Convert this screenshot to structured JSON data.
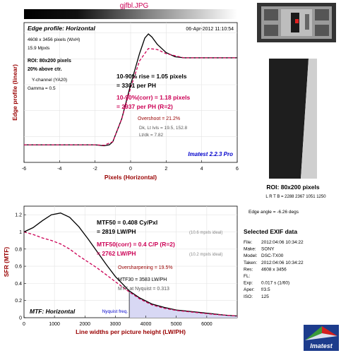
{
  "filename": "gjfbl.JPG",
  "chart_data": [
    {
      "type": "line",
      "title": "Edge profile: Horizontal",
      "timestamp": "06-Apr-2012 11:10:54",
      "xlabel": "Pixels (Horizontal)",
      "ylabel": "Edge profile (linear)",
      "xlim": [
        -6,
        6
      ],
      "ylim": [
        0,
        1.35
      ],
      "x_ticks": [
        "-6",
        "-4",
        "-2",
        "0",
        "2",
        "4",
        "6"
      ],
      "info": [
        "4608 x 3456 pixels (WxH)",
        "15.9 Mpxls"
      ],
      "roi_info": [
        "ROI: 80x200 pixels",
        "20% above ctr."
      ],
      "channel_info": [
        "Y-channel  (YA20)",
        "Gamma = 0.5"
      ],
      "rise_lines": [
        "10-90% rise = 1.05 pixels",
        "= 3301 per PH"
      ],
      "rise_corr_lines": [
        "10-90%(corr) = 1.18 pixels",
        "= 2937 per PH  (R=2)"
      ],
      "overshoot": "Overshoot = 21.2%",
      "dk_lines": [
        "Dk, Lt lvls = 19.5, 152.8",
        "Lt/dk = 7.82"
      ],
      "brand": "Imatest 2.2.3 Pro",
      "series": [
        {
          "style": "solid",
          "color": "#000000",
          "x": [
            -6,
            -5,
            -4,
            -3,
            -2,
            -1.5,
            -1.2,
            -1,
            -0.5,
            0,
            0.5,
            0.8,
            1,
            1.2,
            1.5,
            2,
            2.5,
            3,
            4,
            5,
            6
          ],
          "y": [
            0.17,
            0.17,
            0.17,
            0.17,
            0.17,
            0.16,
            0.17,
            0.2,
            0.42,
            0.75,
            1.05,
            1.2,
            1.24,
            1.21,
            1.14,
            1.06,
            1.02,
            1.01,
            1.01,
            1.01,
            1.01
          ]
        },
        {
          "style": "dashed",
          "color": "#cc0055",
          "x": [
            -6,
            -2,
            -1.5,
            -1,
            -0.5,
            0,
            0.5,
            1,
            1.5,
            2,
            3,
            4,
            5,
            6
          ],
          "y": [
            0.17,
            0.17,
            0.165,
            0.2,
            0.42,
            0.72,
            0.98,
            1.1,
            1.09,
            1.05,
            1.01,
            1.01,
            1.01,
            1.01
          ]
        }
      ]
    },
    {
      "type": "line",
      "title": "MTF: Horizontal",
      "xlabel": "Line widths per picture height (LW/PH)",
      "ylabel": "SFR (MTF)",
      "xlim": [
        0,
        7000
      ],
      "ylim": [
        0,
        1.3
      ],
      "x_ticks": [
        "0",
        "1000",
        "2000",
        "3000",
        "4000",
        "5000",
        "6000"
      ],
      "y_ticks": [
        "0",
        "0.2",
        "0.4",
        "0.6",
        "0.8",
        "1",
        "1.2"
      ],
      "nyquist_x": 3456,
      "nyquist_label": "Nyquist freq.",
      "mtf50_lines": [
        "MTF50 = 0.408 Cy/Pxl",
        "= 2819 LW/PH"
      ],
      "mtf50_ideal": "(10.6 mpxls ideal)",
      "mtf50_corr_lines": [
        "MTF50(corr) = 0.4 C/P  (R=2)",
        "= 2762 LW/PH"
      ],
      "mtf50_corr_ideal": "(10.2 mpxls ideal)",
      "oversharpening": "Oversharpening = 19.5%",
      "mtf30": "MTF30 = 3583 LW/PH",
      "nyquist_mtf": "MTF at Nyquist = 0.313",
      "series": [
        {
          "style": "solid",
          "color": "#000000",
          "x": [
            0,
            300,
            600,
            900,
            1200,
            1500,
            1800,
            2100,
            2400,
            2700,
            3000,
            3456,
            3800,
            4200,
            4600,
            5000,
            5400,
            5800,
            6200,
            6600,
            7000
          ],
          "y": [
            1.0,
            1.05,
            1.13,
            1.2,
            1.22,
            1.17,
            1.06,
            0.92,
            0.77,
            0.62,
            0.48,
            0.313,
            0.23,
            0.16,
            0.12,
            0.09,
            0.075,
            0.06,
            0.045,
            0.03,
            0.02
          ]
        },
        {
          "style": "dashed",
          "color": "#cc0055",
          "x": [
            0,
            300,
            600,
            900,
            1200,
            1500,
            1800,
            2100,
            2400,
            2700,
            3000,
            3456,
            3800,
            4200,
            4600,
            5000,
            5400,
            5800,
            6200,
            6600,
            7000
          ],
          "y": [
            1.0,
            0.97,
            0.93,
            0.9,
            0.86,
            0.8,
            0.72,
            0.65,
            0.58,
            0.5,
            0.42,
            0.3,
            0.22,
            0.15,
            0.11,
            0.085,
            0.07,
            0.055,
            0.04,
            0.03,
            0.02
          ]
        }
      ]
    }
  ],
  "thumbnail": {
    "roi_label": "ROI: 80x200 pixels",
    "lrtb": "L R T B = 2288 2367  1051 1250",
    "edge_angle": "Edge angle = -6.26 degs"
  },
  "exif": {
    "title": "Selected EXIF data",
    "rows": [
      [
        "File:",
        "2012:04:06 10:34:22"
      ],
      [
        "Make:",
        "SONY"
      ],
      [
        "Model:",
        "DSC-TX00"
      ],
      [
        "Taken:",
        "2012:04:06 10:34:22"
      ],
      [
        "Res:",
        "4608 x 3456"
      ],
      [
        "FL:",
        ""
      ],
      [
        "Exp:",
        "0.017 s (1/60)"
      ],
      [
        "Aper:",
        "f/3.5"
      ],
      [
        "ISO:",
        "125"
      ]
    ]
  },
  "logo_text": "Imatest",
  "colors": {
    "accent": "#cc0055",
    "blue": "#0000cc",
    "shade": "#d8d8f4",
    "brown": "#990000"
  }
}
